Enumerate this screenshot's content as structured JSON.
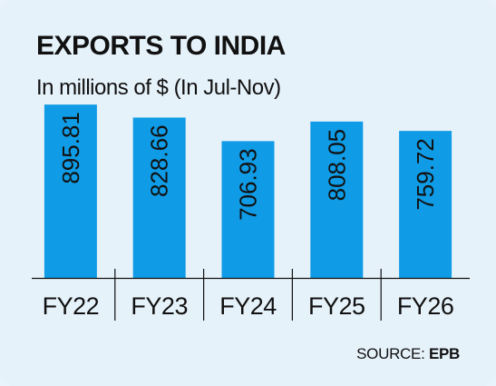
{
  "header": {
    "title": "EXPORTS TO INDIA",
    "subtitle": "In millions of $ (In Jul-Nov)"
  },
  "footer": {
    "source_label": "SOURCE:",
    "source_name": "EPB"
  },
  "colors": {
    "bar": "#0f9be5",
    "background": "#e6f2fa",
    "text": "#111111",
    "axis": "#111111"
  },
  "chart_data": {
    "type": "bar",
    "categories": [
      "FY22",
      "FY23",
      "FY24",
      "FY25",
      "FY26"
    ],
    "values": [
      895.81,
      828.66,
      706.93,
      808.05,
      759.72
    ],
    "data_labels": [
      "895.81",
      "828.66",
      "706.93",
      "808.05",
      "759.72"
    ],
    "title": "EXPORTS TO INDIA",
    "subtitle": "In millions of $ (In Jul-Nov)",
    "xlabel": "",
    "ylabel": "",
    "ylim": [
      0,
      920
    ],
    "grid": false,
    "legend": "none"
  }
}
